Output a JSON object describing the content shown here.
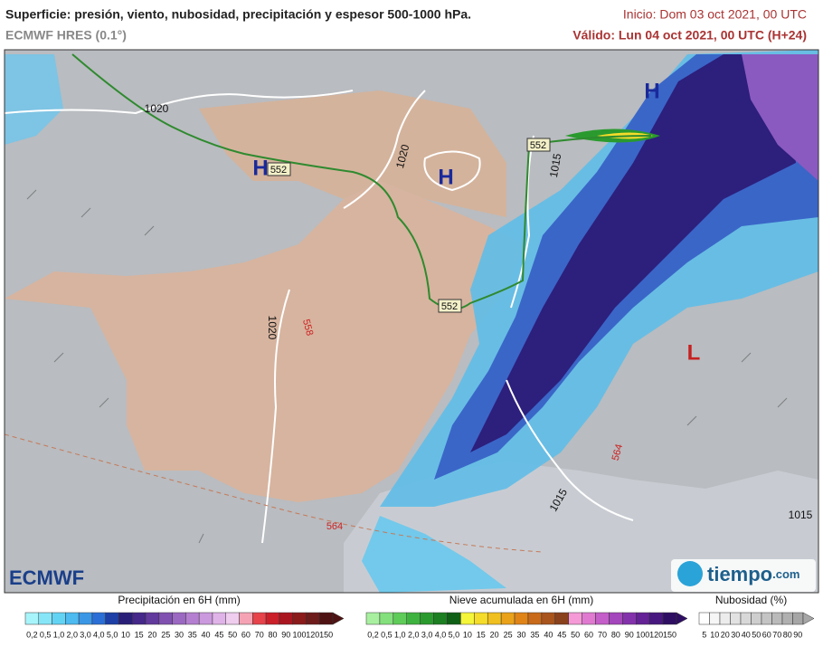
{
  "header": {
    "title": "Superficie: presión, viento, nubosidad, precipitación y espesor 500-1000 hPa.",
    "model": "ECMWF HRES (0.1°)",
    "init": "Inicio: Dom 03 oct 2021, 00 UTC",
    "valid": "Válido: Lun 04 oct 2021, 00 UTC (H+24)"
  },
  "map": {
    "isobars": [
      "1020",
      "1020",
      "1015",
      "1020",
      "1015",
      "1015"
    ],
    "thickness": [
      "552",
      "552",
      "552",
      "558",
      "564",
      "564"
    ],
    "centers": [
      "H",
      "H",
      "H",
      "L"
    ]
  },
  "brands": {
    "left": "ECMWF",
    "right": "tiempo",
    "right_suffix": ".com"
  },
  "legends": [
    {
      "title": "Precipitación en 6H (mm)",
      "ticks": [
        "0,2",
        "0,5",
        "1,0",
        "2,0",
        "3,0",
        "4,0",
        "5,0",
        "10",
        "15",
        "20",
        "25",
        "30",
        "35",
        "40",
        "45",
        "50",
        "60",
        "70",
        "80",
        "90",
        "100",
        "120",
        "150"
      ],
      "colors": [
        "#a8f4fb",
        "#86e6f8",
        "#63d3f4",
        "#4dbaf0",
        "#3b97e6",
        "#2b6fd6",
        "#1d3fa6",
        "#2a1f78",
        "#45288a",
        "#62399c",
        "#8051b0",
        "#9b68c2",
        "#b47fd0",
        "#cb99dd",
        "#dfb3e8",
        "#efcdef",
        "#f5a3b4",
        "#e6434b",
        "#cb1f2a",
        "#a91620",
        "#8b1a1a",
        "#6e1b1b",
        "#4f1212"
      ]
    },
    {
      "title": "Nieve acumulada en 6H (mm)",
      "ticks": [
        "0,2",
        "0,5",
        "1,0",
        "2,0",
        "3,0",
        "4,0",
        "5,0",
        "10",
        "15",
        "20",
        "25",
        "30",
        "35",
        "40",
        "45",
        "50",
        "60",
        "70",
        "80",
        "90",
        "100",
        "120",
        "150"
      ],
      "colors": [
        "#a8f0a0",
        "#84e07c",
        "#5fcc5a",
        "#3fb33f",
        "#2a9a2e",
        "#1c7f22",
        "#0f5f16",
        "#f5f53a",
        "#f5dc2a",
        "#f0c020",
        "#eaa21a",
        "#e08418",
        "#c86a1a",
        "#a8541c",
        "#8a421c",
        "#f59ad6",
        "#e07ad0",
        "#c45ec8",
        "#a446bc",
        "#8432ac",
        "#642296",
        "#481880",
        "#2e0e62"
      ]
    },
    {
      "title": "Nubosidad (%)",
      "ticks": [
        "5",
        "10",
        "20",
        "30",
        "40",
        "50",
        "60",
        "70",
        "80",
        "90"
      ],
      "colors": [
        "#ffffff",
        "#f6f6f6",
        "#ececec",
        "#e2e2e2",
        "#d8d8d8",
        "#cecece",
        "#c4c4c4",
        "#bababa",
        "#b0b0b0",
        "#a6a6a6"
      ]
    }
  ]
}
